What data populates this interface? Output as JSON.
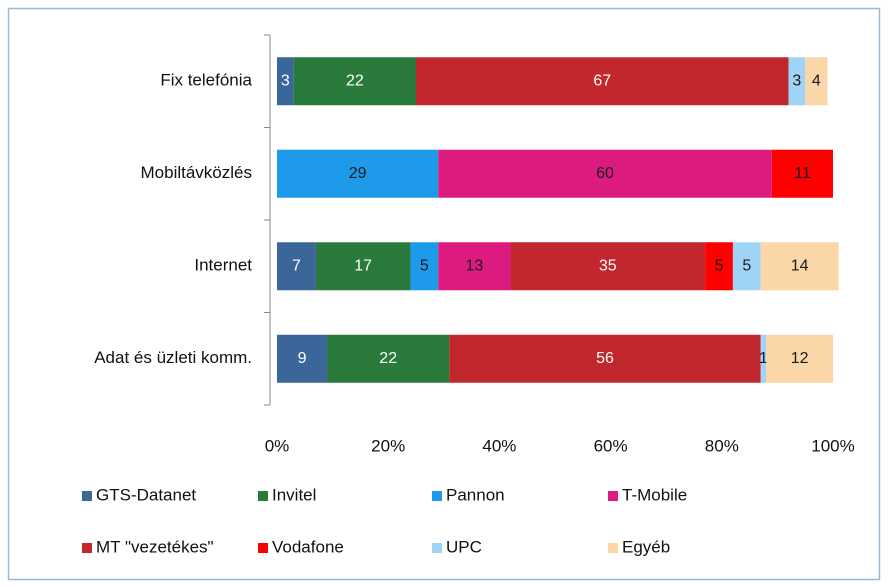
{
  "chart_data": {
    "type": "stacked_barh",
    "categories": [
      "Fix telefónia",
      "Mobiltávközlés",
      "Internet",
      "Adat és üzleti komm."
    ],
    "series": [
      {
        "name": "GTS-Datanet",
        "color": "#3a6699",
        "label_color": "#ffffff",
        "values": [
          3,
          null,
          7,
          9
        ]
      },
      {
        "name": "Invitel",
        "color": "#2a7a3b",
        "label_color": "#ffffff",
        "values": [
          22,
          null,
          17,
          22
        ]
      },
      {
        "name": "Pannon",
        "color": "#1d9bea",
        "label_color": "#1a1a1a",
        "values": [
          null,
          29,
          5,
          null
        ]
      },
      {
        "name": "T-Mobile",
        "color": "#dd1a80",
        "label_color": "#1a1a1a",
        "values": [
          null,
          60,
          13,
          null
        ]
      },
      {
        "name": "MT \"vezetékes\"",
        "color": "#c2272d",
        "label_color": "#ffffff",
        "values": [
          67,
          null,
          35,
          56
        ]
      },
      {
        "name": "Vodafone",
        "color": "#ff0000",
        "label_color": "#1a1a1a",
        "values": [
          null,
          11,
          5,
          null
        ]
      },
      {
        "name": "UPC",
        "color": "#a0d4f6",
        "label_color": "#1a1a1a",
        "values": [
          3,
          null,
          5,
          1
        ]
      },
      {
        "name": "Egyéb",
        "color": "#fbd6a6",
        "label_color": "#1a1a1a",
        "values": [
          4,
          null,
          14,
          12
        ]
      }
    ],
    "xlim": [
      0,
      100
    ],
    "xticks": [
      {
        "value": 0,
        "label": "0%"
      },
      {
        "value": 20,
        "label": "20%"
      },
      {
        "value": 40,
        "label": "40%"
      },
      {
        "value": 60,
        "label": "60%"
      },
      {
        "value": 80,
        "label": "80%"
      },
      {
        "value": 100,
        "label": "100%"
      }
    ],
    "legend": "bottom"
  }
}
